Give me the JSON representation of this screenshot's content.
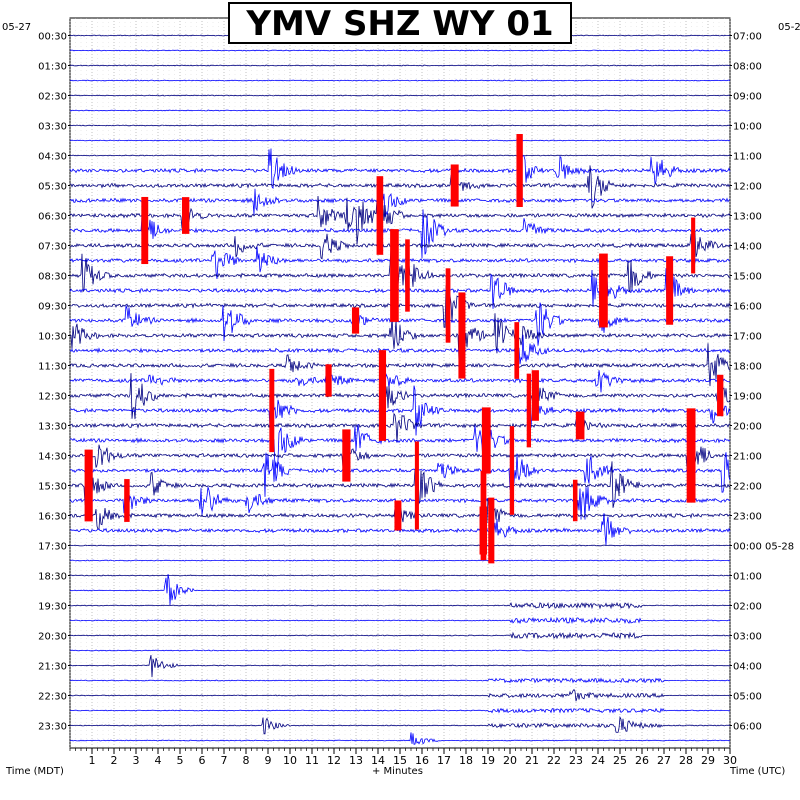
{
  "chart_data": {
    "type": "line",
    "title": "YMV SHZ WY 01",
    "xlabel": "+ Minutes",
    "left_axis_label": "Time (MDT)",
    "right_axis_label": "Time (UTC)",
    "start_date_left": "05-27",
    "start_date_right": "05-2",
    "date_change_label": "05-28",
    "x_range": [
      0,
      30
    ],
    "x_ticks": [
      "1",
      "2",
      "3",
      "4",
      "5",
      "6",
      "7",
      "8",
      "9",
      "10",
      "11",
      "12",
      "13",
      "14",
      "15",
      "16",
      "17",
      "18",
      "19",
      "20",
      "21",
      "22",
      "23",
      "24",
      "25",
      "26",
      "27",
      "28",
      "29",
      "30"
    ],
    "left_ticks": [
      "00:30",
      "01:30",
      "02:30",
      "03:30",
      "04:30",
      "05:30",
      "06:30",
      "07:30",
      "08:30",
      "09:30",
      "10:30",
      "11:30",
      "12:30",
      "13:30",
      "14:30",
      "15:30",
      "16:30",
      "17:30",
      "18:30",
      "19:30",
      "20:30",
      "21:30",
      "22:30",
      "23:30"
    ],
    "right_ticks": [
      "07:00",
      "08:00",
      "09:00",
      "10:00",
      "11:00",
      "12:00",
      "13:00",
      "14:00",
      "15:00",
      "16:00",
      "17:00",
      "18:00",
      "19:00",
      "20:00",
      "21:00",
      "22:00",
      "23:00",
      "00:00",
      "01:00",
      "02:00",
      "03:00",
      "04:00",
      "05:00",
      "06:00"
    ],
    "trace_colors": [
      "#000080",
      "#0000ff"
    ],
    "clip_color": "#ff0000",
    "grid": "dotted"
  }
}
